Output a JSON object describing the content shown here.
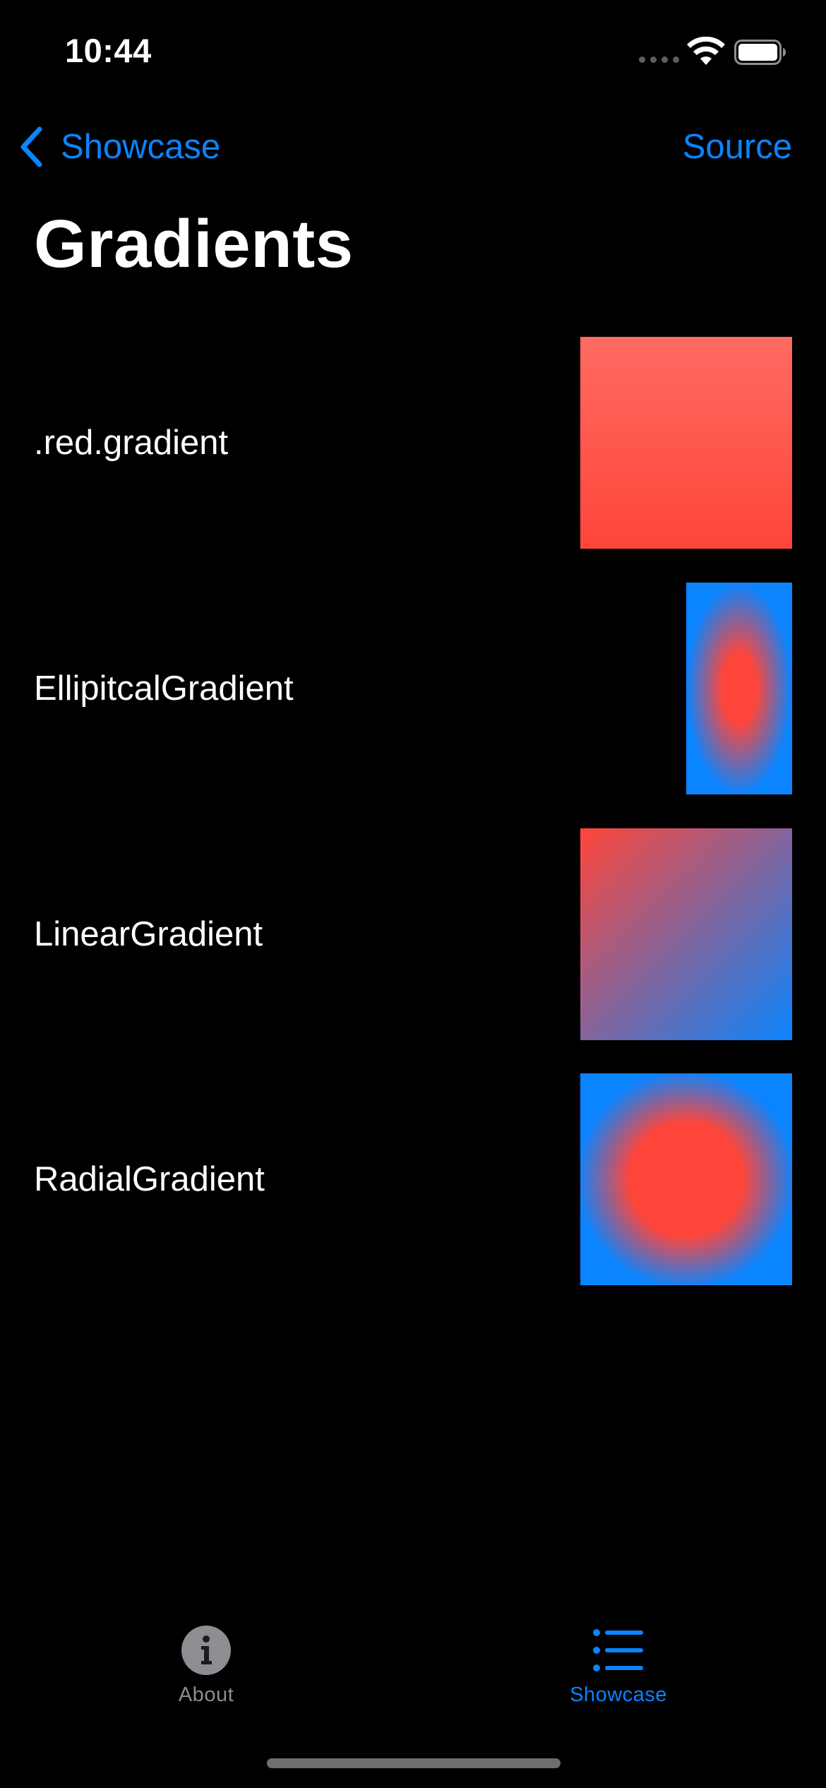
{
  "status_bar": {
    "time": "10:44",
    "wifi_icon": "wifi-icon",
    "battery_icon": "battery-icon"
  },
  "nav": {
    "back_label": "Showcase",
    "back_icon": "chevron-left-icon",
    "action_label": "Source"
  },
  "title": "Gradients",
  "rows": [
    {
      "label": ".red.gradient",
      "swatch": "red-gradient-swatch"
    },
    {
      "label": "EllipitcalGradient",
      "swatch": "elliptical-gradient-swatch"
    },
    {
      "label": "LinearGradient",
      "swatch": "linear-gradient-swatch"
    },
    {
      "label": "RadialGradient",
      "swatch": "radial-gradient-swatch"
    }
  ],
  "tab_bar": {
    "items": [
      {
        "label": "About",
        "icon": "info-circle-icon",
        "selected": false
      },
      {
        "label": "Showcase",
        "icon": "list-bullet-icon",
        "selected": true
      }
    ]
  },
  "colors": {
    "accent": "#0a84ff",
    "red": "#ff453a",
    "background": "#000000",
    "inactive_tab": "#8d8d92"
  }
}
